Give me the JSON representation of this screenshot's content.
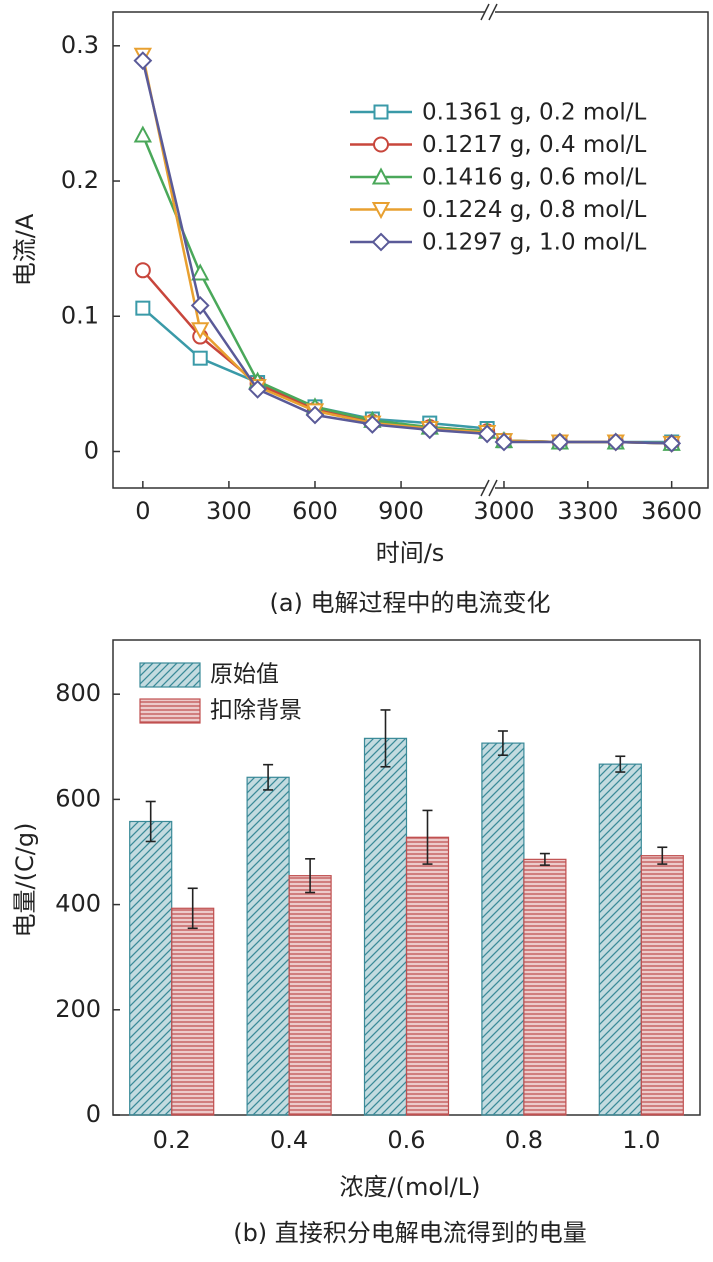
{
  "chart_data": [
    {
      "type": "line",
      "xlabel": "时间/s",
      "ylabel": "电流/A",
      "caption": "(a) 电解过程中的电流变化",
      "x": [
        0,
        200,
        400,
        600,
        800,
        1000,
        1200,
        3000,
        3200,
        3400,
        3600
      ],
      "xlim": [
        -104,
        3730
      ],
      "xbreak": [
        1210,
        2950
      ],
      "xticks": [
        0,
        300,
        600,
        900,
        3000,
        3300,
        3600
      ],
      "ylim": [
        -0.027,
        0.325
      ],
      "yticks": [
        0,
        0.1,
        0.2,
        0.3
      ],
      "legend": "upper right",
      "series": [
        {
          "name": "0.1361 g, 0.2 mol/L",
          "color": "#3a9aa8",
          "marker": "square",
          "values": [
            0.106,
            0.069,
            0.051,
            0.033,
            0.024,
            0.021,
            0.017,
            0.008,
            0.007,
            0.007,
            0.007
          ]
        },
        {
          "name": "0.1217 g, 0.4 mol/L",
          "color": "#c8463c",
          "marker": "circle",
          "values": [
            0.134,
            0.085,
            0.05,
            0.031,
            0.022,
            0.018,
            0.015,
            0.008,
            0.007,
            0.007,
            0.006
          ]
        },
        {
          "name": "0.1416 g, 0.6 mol/L",
          "color": "#4aa85a",
          "marker": "triangle-up",
          "values": [
            0.234,
            0.132,
            0.052,
            0.033,
            0.023,
            0.018,
            0.015,
            0.008,
            0.007,
            0.007,
            0.006
          ]
        },
        {
          "name": "0.1224 g, 0.8 mol/L",
          "color": "#e8a030",
          "marker": "triangle-down",
          "values": [
            0.293,
            0.09,
            0.048,
            0.03,
            0.021,
            0.017,
            0.014,
            0.008,
            0.007,
            0.007,
            0.006
          ]
        },
        {
          "name": "0.1297 g, 1.0 mol/L",
          "color": "#5a5a98",
          "marker": "diamond",
          "values": [
            0.289,
            0.108,
            0.046,
            0.027,
            0.02,
            0.016,
            0.013,
            0.007,
            0.007,
            0.007,
            0.006
          ]
        }
      ]
    },
    {
      "type": "bar",
      "xlabel": "浓度/(mol/L)",
      "ylabel": "电量/(C/g)",
      "caption": "(b) 直接积分电解电流得到的电量",
      "categories": [
        "0.2",
        "0.4",
        "0.6",
        "0.8",
        "1.0"
      ],
      "ylim": [
        0,
        903
      ],
      "yticks": [
        0,
        200,
        400,
        600,
        800
      ],
      "legend": "upper left",
      "series": [
        {
          "name": "原始值",
          "color": "#3a8a98",
          "hatch": "diagonal",
          "values": [
            558,
            642,
            716,
            707,
            667
          ],
          "errors": [
            38,
            24,
            54,
            23,
            15
          ]
        },
        {
          "name": "扣除背景",
          "color": "#c05050",
          "hatch": "horizontal",
          "values": [
            393,
            455,
            528,
            486,
            493
          ],
          "errors": [
            38,
            32,
            51,
            11,
            16
          ]
        }
      ]
    }
  ]
}
